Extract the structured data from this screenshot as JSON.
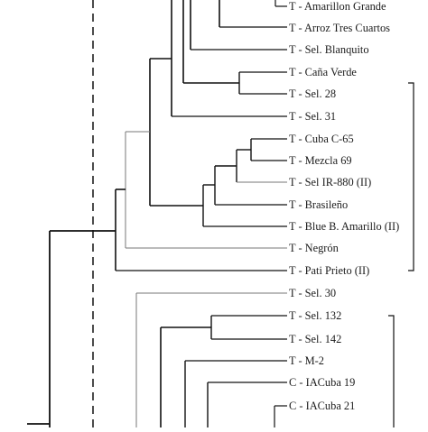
{
  "tree": {
    "group_upper": {
      "leaves": [
        {
          "id": "amarillon",
          "label": "T - Amarillon Grande"
        },
        {
          "id": "arroz",
          "label": "T - Arroz Tres Cuartos"
        },
        {
          "id": "blanquito",
          "label": "T - Sel. Blanquito"
        },
        {
          "id": "cana",
          "label": "T - Caña Verde"
        },
        {
          "id": "sel28",
          "label": "T - Sel. 28"
        },
        {
          "id": "sel31",
          "label": "T - Sel. 31"
        },
        {
          "id": "cuba",
          "label": "T - Cuba C-65"
        },
        {
          "id": "mezcla",
          "label": "T - Mezcla 69"
        },
        {
          "id": "selir",
          "label": "T - Sel IR-880 (II)"
        },
        {
          "id": "brasileno",
          "label": "T - Brasileño"
        },
        {
          "id": "blueb",
          "label": "T - Blue B. Amarillo (II)"
        },
        {
          "id": "negron",
          "label": "T - Negrón"
        },
        {
          "id": "pati",
          "label": "T - Pati Prieto (II)"
        }
      ]
    },
    "group_lower": {
      "leaves": [
        {
          "id": "sel30",
          "label": "T - Sel. 30"
        },
        {
          "id": "sel132",
          "label": "T - Sel. 132"
        },
        {
          "id": "sel142",
          "label": "T - Sel. 142"
        },
        {
          "id": "m2",
          "label": "T - M-2"
        },
        {
          "id": "iac19",
          "label": "C - IACuba 19"
        },
        {
          "id": "iac21",
          "label": "C - IACuba 21"
        }
      ]
    }
  }
}
